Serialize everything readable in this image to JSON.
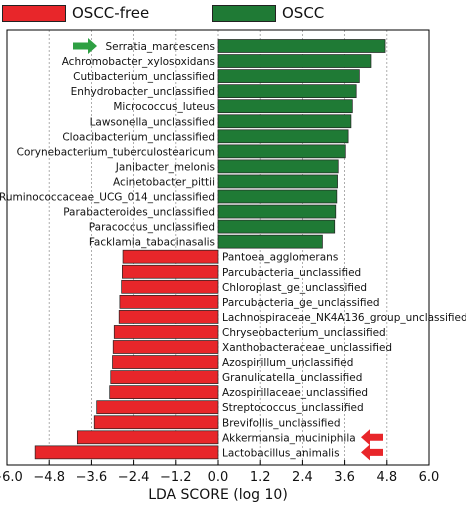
{
  "chart_data": {
    "type": "bar",
    "orientation": "horizontal",
    "xlabel": "LDA SCORE (log 10)",
    "xlim": [
      -6.0,
      6.0
    ],
    "xticks": [
      "−6.0",
      "−4.8",
      "−3.6",
      "−2.4",
      "−1.2",
      "0.0",
      "1.2",
      "2.4",
      "3.6",
      "4.8",
      "6.0"
    ],
    "xtick_values": [
      -6.0,
      -4.8,
      -3.6,
      -2.4,
      -1.2,
      0.0,
      1.2,
      2.4,
      3.6,
      4.8,
      6.0
    ],
    "grid": true,
    "legend_position": "top",
    "series": [
      {
        "name": "OSCC-free",
        "color": "#e8262a"
      },
      {
        "name": "OSCC",
        "color": "#1f7a35"
      }
    ],
    "categories": [
      "Serratia_marcescens",
      "Achromobacter_xylosoxidans",
      "Cutibacterium_unclassified",
      "Enhydrobacter_unclassified",
      "Micrococcus_luteus",
      "Lawsonella_unclassified",
      "Cloacibacterium_unclassified",
      "Corynebacterium_tuberculostearicum",
      "Janibacter_melonis",
      "Acinetobacter_pittii",
      "Ruminococcaceae_UCG_014_unclassified",
      "Parabacteroides_unclassified",
      "Paracoccus_unclassified",
      "Facklamia_tabacinasalis",
      "Pantoea_agglomerans",
      "Parcubacteria_unclassified",
      "Chloroplast_ge_unclassified",
      "Parcubacteria_ge_unclassified",
      "Lachnospiraceae_NK4A136_group_unclassified",
      "Chryseobacterium_unclassified",
      "Xanthobacteraceae_unclassified",
      "Azospirillum_unclassified",
      "Granulicatella_unclassified",
      "Azospirillaceae_unclassified",
      "Streptococcus_unclassified",
      "Brevifollis_unclassified",
      "Akkermansia_muciniphila",
      "Lactobacillus_animalis"
    ],
    "values": [
      4.75,
      4.35,
      4.02,
      3.93,
      3.82,
      3.78,
      3.7,
      3.62,
      3.42,
      3.4,
      3.38,
      3.35,
      3.32,
      2.97,
      -2.7,
      -2.72,
      -2.74,
      -2.79,
      -2.81,
      -2.95,
      -2.98,
      -3.0,
      -3.05,
      -3.08,
      -3.45,
      -3.52,
      -4.0,
      -5.2
    ],
    "series_index": [
      1,
      1,
      1,
      1,
      1,
      1,
      1,
      1,
      1,
      1,
      1,
      1,
      1,
      1,
      0,
      0,
      0,
      0,
      0,
      0,
      0,
      0,
      0,
      0,
      0,
      0,
      0,
      0
    ],
    "highlight_arrows": [
      {
        "category": "Serratia_marcescens",
        "color": "#2ea043",
        "side": "left"
      },
      {
        "category": "Akkermansia_muciniphila",
        "color": "#e8262a",
        "side": "right"
      },
      {
        "category": "Lactobacillus_animalis",
        "color": "#e8262a",
        "side": "right"
      }
    ]
  }
}
